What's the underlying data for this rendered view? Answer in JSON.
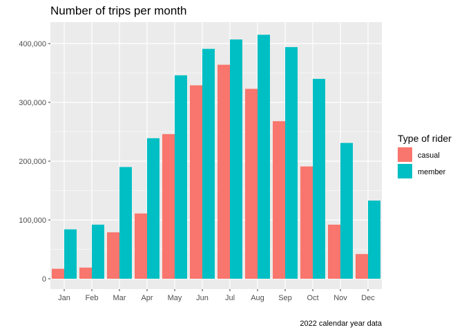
{
  "chart_data": {
    "type": "bar",
    "title": "Number of trips per month",
    "caption": "2022 calendar year data",
    "xlabel": "",
    "ylabel": "",
    "categories": [
      "Jan",
      "Feb",
      "Mar",
      "Apr",
      "May",
      "Jun",
      "Jul",
      "Aug",
      "Sep",
      "Oct",
      "Nov",
      "Dec"
    ],
    "series": [
      {
        "name": "casual",
        "color": "#F8766D",
        "values": [
          17000,
          19000,
          79000,
          111000,
          246000,
          329000,
          364000,
          323000,
          268000,
          191000,
          92000,
          42000
        ]
      },
      {
        "name": "member",
        "color": "#00BFC4",
        "values": [
          84000,
          92000,
          190000,
          239000,
          346000,
          391000,
          407000,
          415000,
          394000,
          340000,
          231000,
          133000
        ]
      }
    ],
    "ylim": [
      0,
      435000
    ],
    "yticks": [
      0,
      100000,
      200000,
      300000,
      400000
    ],
    "ytick_labels": [
      "0",
      "100,000",
      "200,000",
      "300,000",
      "400,000"
    ],
    "grid": true,
    "legend": {
      "title": "Type of rider",
      "position": "right"
    },
    "panel_color": "#EBEBEB",
    "grid_color": "#FFFFFF"
  }
}
